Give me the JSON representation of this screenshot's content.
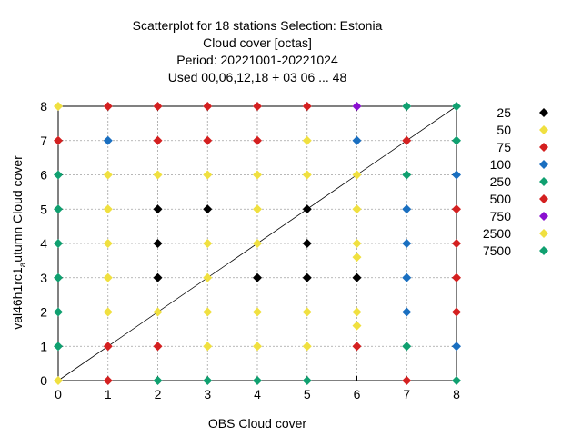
{
  "chart_data": {
    "type": "scatter",
    "title_lines": [
      "Scatterplot for   18 stations Selection: Estonia",
      "Cloud cover [octas]",
      "Period: 20221001-20221024",
      "Used  00,06,12,18  + 03 06 ... 48"
    ],
    "xlabel": "OBS Cloud cover",
    "ylabel_main": "val46h1rc1",
    "ylabel_sub": "a",
    "ylabel_rest": "utumn Cloud cover",
    "xlim": [
      0,
      8
    ],
    "ylim": [
      0,
      8
    ],
    "x_ticks": [
      "0",
      "1",
      "2",
      "3",
      "4",
      "5",
      "6",
      "7",
      "8"
    ],
    "y_ticks": [
      "0",
      "1",
      "2",
      "3",
      "4",
      "5",
      "6",
      "7",
      "8"
    ],
    "grid": true,
    "diagonal": true,
    "legend_position": "right",
    "series": [
      {
        "name": "25",
        "color": "#000000",
        "points": [
          [
            2,
            5
          ],
          [
            3,
            5
          ],
          [
            5,
            5
          ],
          [
            2,
            4
          ],
          [
            5,
            4
          ],
          [
            2,
            3
          ],
          [
            4,
            3
          ],
          [
            5,
            3
          ],
          [
            6,
            3
          ]
        ]
      },
      {
        "name": "50",
        "color": "#f0e040",
        "points": [
          [
            0,
            8
          ],
          [
            5,
            7
          ],
          [
            1,
            6
          ],
          [
            2,
            6
          ],
          [
            3,
            6
          ],
          [
            4,
            6
          ],
          [
            5,
            6
          ],
          [
            6,
            6
          ],
          [
            1,
            5
          ],
          [
            4,
            5
          ],
          [
            6,
            5
          ],
          [
            1,
            4
          ],
          [
            3,
            4
          ],
          [
            4,
            4
          ],
          [
            6,
            4
          ],
          [
            1,
            3
          ],
          [
            3,
            3
          ],
          [
            6,
            3.6
          ],
          [
            1,
            2
          ],
          [
            2,
            2
          ],
          [
            3,
            2
          ],
          [
            4,
            2
          ],
          [
            5,
            2
          ],
          [
            6,
            2
          ],
          [
            3,
            1
          ],
          [
            4,
            1
          ],
          [
            5,
            1
          ],
          [
            6,
            1.6
          ],
          [
            0,
            0
          ]
        ]
      },
      {
        "name": "75",
        "color": "#d42020",
        "points": [
          [
            1,
            8
          ],
          [
            2,
            8
          ],
          [
            3,
            8
          ],
          [
            4,
            8
          ],
          [
            5,
            8
          ],
          [
            2,
            7
          ],
          [
            3,
            7
          ],
          [
            4,
            7
          ],
          [
            1,
            1
          ],
          [
            2,
            1
          ]
        ]
      },
      {
        "name": "100",
        "color": "#1a6fc0",
        "points": [
          [
            1,
            7
          ],
          [
            6,
            7
          ],
          [
            8,
            6
          ],
          [
            7,
            5
          ],
          [
            7,
            4
          ],
          [
            7,
            3
          ],
          [
            7,
            2
          ],
          [
            8,
            1
          ]
        ]
      },
      {
        "name": "250",
        "color": "#10a070",
        "points": [
          [
            7,
            8
          ],
          [
            8,
            8
          ],
          [
            8,
            7
          ],
          [
            0,
            6
          ],
          [
            7,
            6
          ],
          [
            0,
            5
          ],
          [
            0,
            4
          ],
          [
            0,
            3
          ],
          [
            0,
            2
          ],
          [
            0,
            1
          ],
          [
            7,
            1
          ],
          [
            2,
            0
          ],
          [
            3,
            0
          ],
          [
            4,
            0
          ],
          [
            5,
            0
          ],
          [
            8,
            0
          ]
        ]
      },
      {
        "name": "500",
        "color": "#d42020",
        "points": [
          [
            0,
            7
          ],
          [
            7,
            7
          ],
          [
            8,
            5
          ],
          [
            8,
            4
          ],
          [
            8,
            3
          ],
          [
            8,
            2
          ],
          [
            6,
            1
          ],
          [
            1,
            0
          ],
          [
            7,
            0
          ]
        ]
      },
      {
        "name": "750",
        "color": "#8a10d0",
        "points": [
          [
            6,
            8
          ]
        ]
      },
      {
        "name": "2500",
        "color": "#f0e040",
        "points": []
      },
      {
        "name": "7500",
        "color": "#10a070",
        "points": []
      }
    ]
  }
}
